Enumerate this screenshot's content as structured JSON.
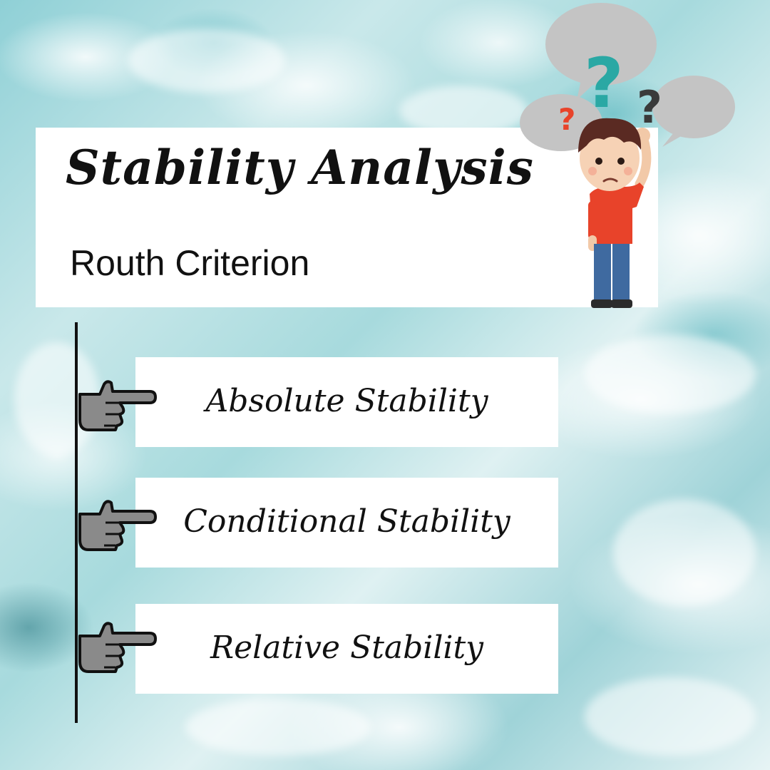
{
  "header": {
    "title": "Stability Analysis",
    "subtitle": "Routh Criterion"
  },
  "items": [
    {
      "label": "Absolute Stability"
    },
    {
      "label": "Conditional Stability"
    },
    {
      "label": "Relative Stability"
    }
  ],
  "icons": {
    "bullet": "pointing-hand-icon",
    "illustration": "confused-boy-illustration"
  },
  "colors": {
    "water": "#8fd0d6",
    "card": "#ffffff",
    "text": "#111111",
    "hand_fill": "#8a8a8a",
    "question_teal": "#2aa8a4",
    "question_red": "#e8432a",
    "question_dark": "#3a3a3a",
    "shirt": "#e8432a",
    "pants": "#3f6aa0"
  }
}
